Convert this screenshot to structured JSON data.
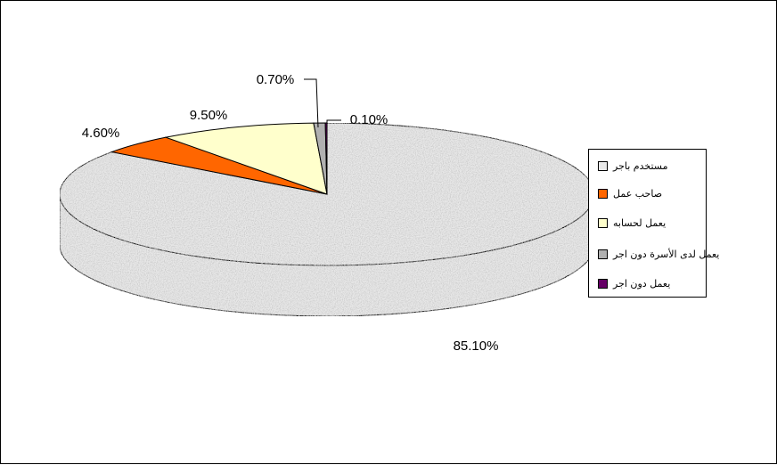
{
  "chart_data": {
    "type": "pie",
    "three_d": true,
    "categories": [
      "مستخدم باجر",
      "صاحب عمل",
      "يعمل لحسابه",
      "يعمل لدى الأسرة دون اجر",
      "يعمل دون اجر"
    ],
    "values": [
      85.1,
      4.6,
      9.5,
      0.7,
      0.1
    ],
    "labels": [
      "85.10%",
      "4.60%",
      "9.50%",
      "0.70%",
      "0.10%"
    ],
    "colors": [
      "#e8e8e8",
      "#ff6600",
      "#ffffcc",
      "#b0b0b0",
      "#660066"
    ],
    "legend_position": "right"
  }
}
